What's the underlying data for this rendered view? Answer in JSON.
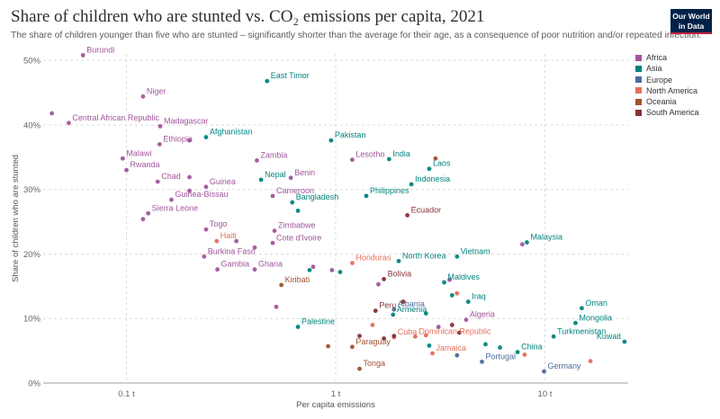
{
  "header": {
    "title": "Share of children who are stunted vs. CO₂ emissions per capita, 2021",
    "subtitle": "The share of children younger than five who are stunted – significantly shorter than the average for their age, as a consequence of poor nutrition and/or repeated infection.",
    "logo_line1": "Our World",
    "logo_line2": "in Data"
  },
  "colors": {
    "Africa": "#a2559c",
    "Asia": "#00847e",
    "Europe": "#4c6a9c",
    "North America": "#e56e5a",
    "Oceania": "#a0522d",
    "South America": "#883039"
  },
  "legend": [
    "Africa",
    "Asia",
    "Europe",
    "North America",
    "Oceania",
    "South America"
  ],
  "chart_data": {
    "type": "scatter",
    "title": "Share of children who are stunted vs. CO₂ emissions per capita, 2021",
    "xlabel": "Per capita emissions",
    "ylabel": "Share of children who are stunted",
    "x_scale": "log",
    "xlim": [
      0.04,
      25
    ],
    "ylim": [
      0,
      51
    ],
    "x_ticks": [
      {
        "value": 0.1,
        "label": "0.1 t"
      },
      {
        "value": 1,
        "label": "1 t"
      },
      {
        "value": 10,
        "label": "10 t"
      }
    ],
    "y_ticks": [
      {
        "value": 0,
        "label": "0%"
      },
      {
        "value": 10,
        "label": "10%"
      },
      {
        "value": 20,
        "label": "20%"
      },
      {
        "value": 30,
        "label": "30%"
      },
      {
        "value": 40,
        "label": "40%"
      },
      {
        "value": 50,
        "label": "50%"
      }
    ],
    "grid": "dashed",
    "legend_position": "right",
    "points": [
      {
        "x": 0.062,
        "y": 50.8,
        "continent": "Africa",
        "label": "Burundi"
      },
      {
        "x": 0.12,
        "y": 44.4,
        "continent": "Africa",
        "label": "Niger"
      },
      {
        "x": 0.044,
        "y": 41.8,
        "continent": "Africa"
      },
      {
        "x": 0.053,
        "y": 40.3,
        "continent": "Africa",
        "label": "Central African Republic"
      },
      {
        "x": 0.145,
        "y": 39.8,
        "continent": "Africa",
        "label": "Madagascar"
      },
      {
        "x": 0.144,
        "y": 37.0,
        "continent": "Africa",
        "label": "Ethiopia"
      },
      {
        "x": 0.2,
        "y": 37.6,
        "continent": "Africa"
      },
      {
        "x": 0.096,
        "y": 34.8,
        "continent": "Africa",
        "label": "Malawi"
      },
      {
        "x": 0.1,
        "y": 33.0,
        "continent": "Africa",
        "label": "Rwanda"
      },
      {
        "x": 0.141,
        "y": 31.2,
        "continent": "Africa",
        "label": "Chad"
      },
      {
        "x": 0.2,
        "y": 31.9,
        "continent": "Africa"
      },
      {
        "x": 0.2,
        "y": 29.8,
        "continent": "Africa"
      },
      {
        "x": 0.24,
        "y": 30.4,
        "continent": "Africa",
        "label": "Guinea"
      },
      {
        "x": 0.164,
        "y": 28.4,
        "continent": "Africa",
        "label": "Guinea-Bissau"
      },
      {
        "x": 0.12,
        "y": 25.4,
        "continent": "Africa"
      },
      {
        "x": 0.127,
        "y": 26.3,
        "continent": "Africa",
        "label": "Sierra Leone"
      },
      {
        "x": 0.24,
        "y": 23.8,
        "continent": "Africa",
        "label": "Togo"
      },
      {
        "x": 0.335,
        "y": 22.0,
        "continent": "Africa"
      },
      {
        "x": 0.235,
        "y": 19.6,
        "continent": "Africa",
        "label": "Burkina Faso"
      },
      {
        "x": 0.272,
        "y": 17.6,
        "continent": "Africa",
        "label": "Gambia"
      },
      {
        "x": 0.41,
        "y": 17.6,
        "continent": "Africa",
        "label": "Ghana"
      },
      {
        "x": 0.41,
        "y": 21.0,
        "continent": "Africa"
      },
      {
        "x": 0.5,
        "y": 21.7,
        "continent": "Africa",
        "label": "Cote d'Ivoire"
      },
      {
        "x": 0.51,
        "y": 23.6,
        "continent": "Africa",
        "label": "Zimbabwe"
      },
      {
        "x": 0.42,
        "y": 34.5,
        "continent": "Africa",
        "label": "Zambia"
      },
      {
        "x": 0.61,
        "y": 31.8,
        "continent": "Africa",
        "label": "Benin"
      },
      {
        "x": 0.5,
        "y": 29.0,
        "continent": "Africa",
        "label": "Cameroon"
      },
      {
        "x": 1.2,
        "y": 34.6,
        "continent": "Africa",
        "label": "Lesotho"
      },
      {
        "x": 0.96,
        "y": 17.5,
        "continent": "Africa"
      },
      {
        "x": 0.78,
        "y": 18.0,
        "continent": "Africa"
      },
      {
        "x": 0.52,
        "y": 11.8,
        "continent": "Africa"
      },
      {
        "x": 4.2,
        "y": 9.8,
        "continent": "Africa",
        "label": "Algeria"
      },
      {
        "x": 1.6,
        "y": 15.3,
        "continent": "Africa"
      },
      {
        "x": 3.5,
        "y": 16.0,
        "continent": "Africa"
      },
      {
        "x": 3.1,
        "y": 8.7,
        "continent": "Africa"
      },
      {
        "x": 7.8,
        "y": 21.5,
        "continent": "Africa"
      },
      {
        "x": 0.47,
        "y": 46.8,
        "continent": "Asia",
        "label": "East Timor"
      },
      {
        "x": 0.24,
        "y": 38.1,
        "continent": "Asia",
        "label": "Afghanistan"
      },
      {
        "x": 0.95,
        "y": 37.6,
        "continent": "Asia",
        "label": "Pakistan"
      },
      {
        "x": 1.8,
        "y": 34.7,
        "continent": "Asia",
        "label": "India"
      },
      {
        "x": 2.8,
        "y": 33.2,
        "continent": "Asia",
        "label": "Laos"
      },
      {
        "x": 2.3,
        "y": 30.8,
        "continent": "Asia",
        "label": "Indonesia"
      },
      {
        "x": 0.44,
        "y": 31.5,
        "continent": "Asia",
        "label": "Nepal"
      },
      {
        "x": 0.62,
        "y": 28.0,
        "continent": "Asia",
        "label": "Bangladesh"
      },
      {
        "x": 0.66,
        "y": 26.7,
        "continent": "Asia"
      },
      {
        "x": 1.4,
        "y": 29.0,
        "continent": "Asia",
        "label": "Philippines"
      },
      {
        "x": 2.0,
        "y": 18.9,
        "continent": "Asia",
        "label": "North Korea"
      },
      {
        "x": 3.8,
        "y": 19.6,
        "continent": "Asia",
        "label": "Vietnam"
      },
      {
        "x": 8.2,
        "y": 21.8,
        "continent": "Asia",
        "label": "Malaysia"
      },
      {
        "x": 3.3,
        "y": 15.6,
        "continent": "Asia",
        "label": "Maldives"
      },
      {
        "x": 4.3,
        "y": 12.6,
        "continent": "Asia",
        "label": "Iraq"
      },
      {
        "x": 3.6,
        "y": 13.6,
        "continent": "Asia"
      },
      {
        "x": 0.75,
        "y": 17.5,
        "continent": "Asia"
      },
      {
        "x": 1.05,
        "y": 17.2,
        "continent": "Asia"
      },
      {
        "x": 1.88,
        "y": 10.6,
        "continent": "Asia",
        "label": "Armenia"
      },
      {
        "x": 2.7,
        "y": 10.8,
        "continent": "Asia"
      },
      {
        "x": 0.66,
        "y": 8.7,
        "continent": "Asia",
        "label": "Palestine"
      },
      {
        "x": 2.8,
        "y": 5.8,
        "continent": "Asia"
      },
      {
        "x": 5.2,
        "y": 6.0,
        "continent": "Asia"
      },
      {
        "x": 6.1,
        "y": 5.5,
        "continent": "Asia"
      },
      {
        "x": 7.4,
        "y": 4.8,
        "continent": "Asia",
        "label": "China"
      },
      {
        "x": 15.0,
        "y": 11.6,
        "continent": "Asia",
        "label": "Oman"
      },
      {
        "x": 14.0,
        "y": 9.3,
        "continent": "Asia",
        "label": "Mongolia"
      },
      {
        "x": 11.0,
        "y": 7.2,
        "continent": "Asia",
        "label": "Turkmenistan"
      },
      {
        "x": 24.0,
        "y": 6.4,
        "continent": "Asia",
        "label": "Kuwait"
      },
      {
        "x": 1.9,
        "y": 11.4,
        "continent": "Europe",
        "label": "Albania"
      },
      {
        "x": 5.0,
        "y": 3.3,
        "continent": "Europe",
        "label": "Portugal"
      },
      {
        "x": 9.9,
        "y": 1.8,
        "continent": "Europe",
        "label": "Germany"
      },
      {
        "x": 3.8,
        "y": 4.3,
        "continent": "Europe"
      },
      {
        "x": 0.27,
        "y": 22.0,
        "continent": "North America",
        "label": "Haiti"
      },
      {
        "x": 1.2,
        "y": 18.6,
        "continent": "North America",
        "label": "Honduras"
      },
      {
        "x": 1.9,
        "y": 7.1,
        "continent": "North America",
        "label": "Cuba"
      },
      {
        "x": 2.4,
        "y": 7.2,
        "continent": "North America",
        "label": "Dominican Republic"
      },
      {
        "x": 2.9,
        "y": 4.6,
        "continent": "North America",
        "label": "Jamaica"
      },
      {
        "x": 3.8,
        "y": 13.9,
        "continent": "North America"
      },
      {
        "x": 1.5,
        "y": 9.0,
        "continent": "North America"
      },
      {
        "x": 2.7,
        "y": 7.4,
        "continent": "North America"
      },
      {
        "x": 8.0,
        "y": 4.4,
        "continent": "North America"
      },
      {
        "x": 16.5,
        "y": 3.4,
        "continent": "North America"
      },
      {
        "x": 0.55,
        "y": 15.2,
        "continent": "Oceania",
        "label": "Kiribati"
      },
      {
        "x": 1.3,
        "y": 2.2,
        "continent": "Oceania",
        "label": "Tonga"
      },
      {
        "x": 3.0,
        "y": 34.8,
        "continent": "Oceania"
      },
      {
        "x": 0.92,
        "y": 5.7,
        "continent": "Oceania"
      },
      {
        "x": 1.2,
        "y": 5.6,
        "continent": "Oceania",
        "label": "Paraguay"
      },
      {
        "x": 2.2,
        "y": 26.0,
        "continent": "South America",
        "label": "Ecuador"
      },
      {
        "x": 1.7,
        "y": 16.1,
        "continent": "South America",
        "label": "Bolivia"
      },
      {
        "x": 1.55,
        "y": 11.2,
        "continent": "South America",
        "label": "Peru"
      },
      {
        "x": 2.1,
        "y": 12.6,
        "continent": "South America"
      },
      {
        "x": 3.6,
        "y": 9.0,
        "continent": "South America"
      },
      {
        "x": 3.9,
        "y": 7.8,
        "continent": "South America"
      },
      {
        "x": 1.3,
        "y": 7.3,
        "continent": "South America"
      },
      {
        "x": 1.7,
        "y": 6.9,
        "continent": "South America"
      },
      {
        "x": 1.9,
        "y": 7.3,
        "continent": "South America"
      }
    ]
  }
}
